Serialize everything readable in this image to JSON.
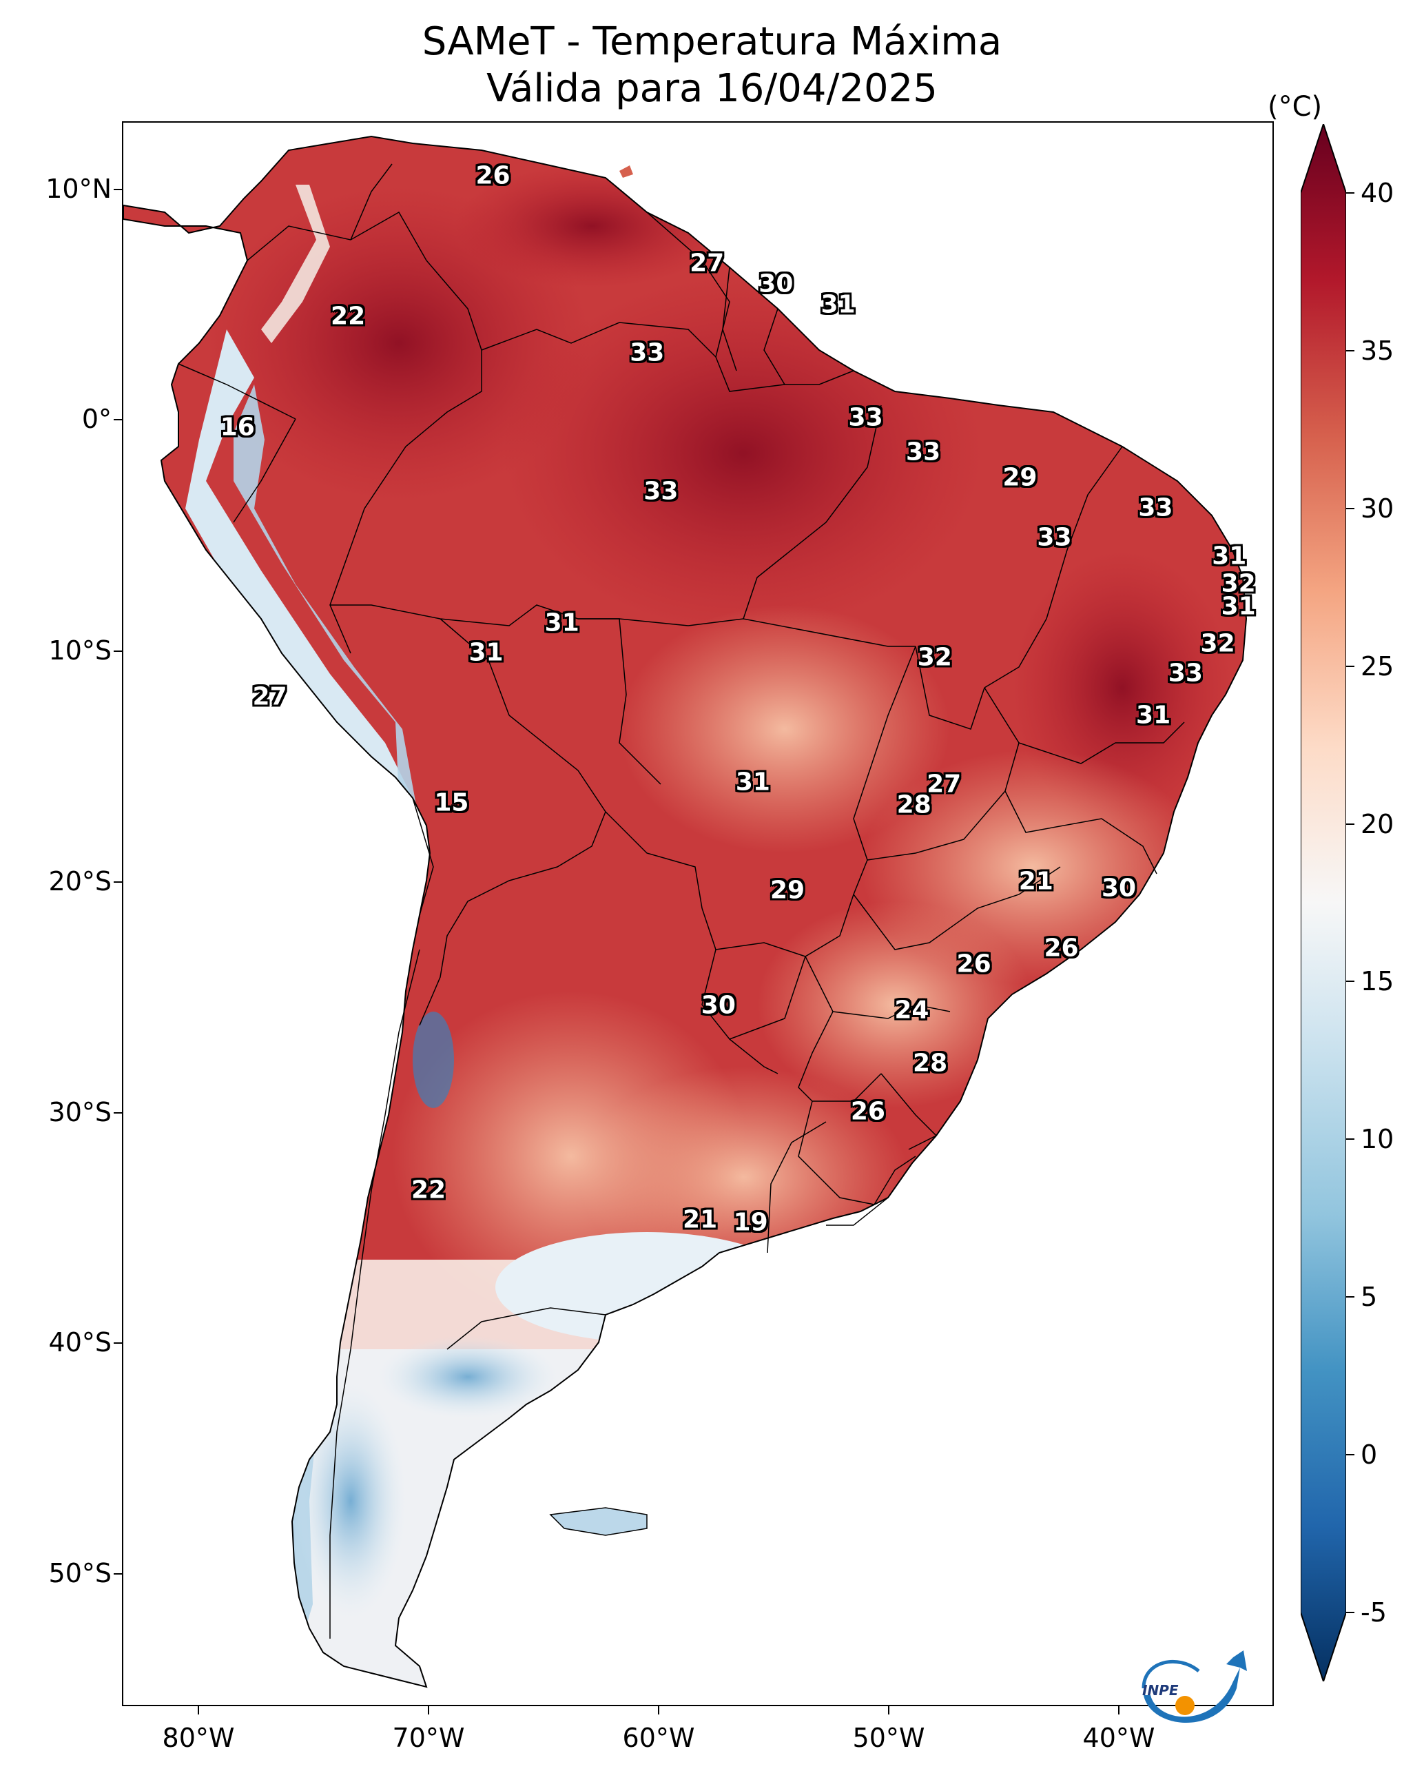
{
  "title": "SAMeT - Temperatura Máxima",
  "subtitle": "Válida para 16/04/2025",
  "colorbar": {
    "units": "(°C)",
    "min": -5,
    "max": 40,
    "ticks": [
      "40",
      "35",
      "30",
      "25",
      "20",
      "15",
      "10",
      "5",
      "0",
      "-5"
    ],
    "colors": [
      "#053061",
      "#2166ac",
      "#4393c3",
      "#92c5de",
      "#d1e5f0",
      "#f7f7f7",
      "#fddbc7",
      "#f4a582",
      "#d6604d",
      "#b2182b",
      "#67001f"
    ]
  },
  "axes": {
    "lat_labels": [
      "10°N",
      "0°",
      "10°S",
      "20°S",
      "30°S",
      "40°S",
      "50°S"
    ],
    "lon_labels": [
      "80°W",
      "70°W",
      "60°W",
      "50°W",
      "40°W"
    ]
  },
  "logo_text": "INPE",
  "map_labels": [
    {
      "text": "26",
      "lon": -67.2,
      "lat": 10.6
    },
    {
      "text": "27",
      "lon": -57.9,
      "lat": 6.8
    },
    {
      "text": "30",
      "lon": -54.9,
      "lat": 5.9
    },
    {
      "text": "31",
      "lon": -52.2,
      "lat": 5.0
    },
    {
      "text": "22",
      "lon": -73.5,
      "lat": 4.5
    },
    {
      "text": "33",
      "lon": -60.5,
      "lat": 2.9
    },
    {
      "text": "16",
      "lon": -78.3,
      "lat": -0.3
    },
    {
      "text": "33",
      "lon": -51.0,
      "lat": 0.1
    },
    {
      "text": "33",
      "lon": -48.5,
      "lat": -1.4
    },
    {
      "text": "29",
      "lon": -44.3,
      "lat": -2.5
    },
    {
      "text": "33",
      "lon": -59.9,
      "lat": -3.1
    },
    {
      "text": "33",
      "lon": -38.4,
      "lat": -3.8
    },
    {
      "text": "33",
      "lon": -42.8,
      "lat": -5.1
    },
    {
      "text": "31",
      "lon": -35.2,
      "lat": -5.9
    },
    {
      "text": "32",
      "lon": -34.8,
      "lat": -7.1
    },
    {
      "text": "31",
      "lon": -34.8,
      "lat": -8.1
    },
    {
      "text": "31",
      "lon": -64.2,
      "lat": -8.8
    },
    {
      "text": "32",
      "lon": -35.7,
      "lat": -9.7
    },
    {
      "text": "31",
      "lon": -67.5,
      "lat": -10.1
    },
    {
      "text": "32",
      "lon": -48.0,
      "lat": -10.3
    },
    {
      "text": "33",
      "lon": -37.1,
      "lat": -11.0
    },
    {
      "text": "27",
      "lon": -76.9,
      "lat": -12.0
    },
    {
      "text": "31",
      "lon": -38.5,
      "lat": -12.8
    },
    {
      "text": "31",
      "lon": -55.9,
      "lat": -15.7
    },
    {
      "text": "27",
      "lon": -47.6,
      "lat": -15.8
    },
    {
      "text": "15",
      "lon": -69.0,
      "lat": -16.6
    },
    {
      "text": "28",
      "lon": -48.9,
      "lat": -16.7
    },
    {
      "text": "21",
      "lon": -43.6,
      "lat": -20.0
    },
    {
      "text": "30",
      "lon": -40.0,
      "lat": -20.3
    },
    {
      "text": "29",
      "lon": -54.4,
      "lat": -20.4
    },
    {
      "text": "26",
      "lon": -42.5,
      "lat": -22.9
    },
    {
      "text": "26",
      "lon": -46.3,
      "lat": -23.6
    },
    {
      "text": "24",
      "lon": -49.0,
      "lat": -25.6
    },
    {
      "text": "30",
      "lon": -57.4,
      "lat": -25.4
    },
    {
      "text": "28",
      "lon": -48.2,
      "lat": -27.9
    },
    {
      "text": "26",
      "lon": -50.9,
      "lat": -30.0
    },
    {
      "text": "22",
      "lon": -70.0,
      "lat": -33.4
    },
    {
      "text": "21",
      "lon": -58.2,
      "lat": -34.7
    },
    {
      "text": "19",
      "lon": -56.0,
      "lat": -34.8
    }
  ]
}
